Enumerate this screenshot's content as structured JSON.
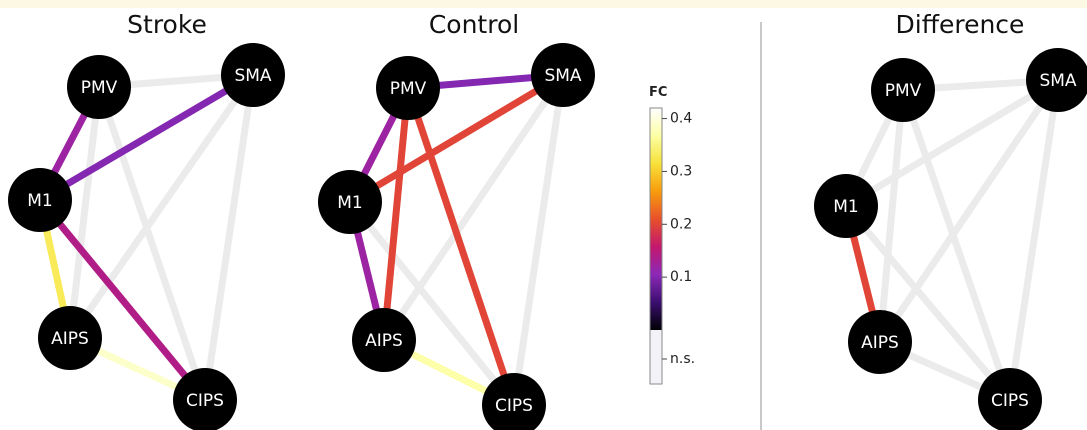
{
  "panels": [
    {
      "id": "stroke",
      "title": "Stroke",
      "edges": [
        {
          "from": "PMV",
          "to": "SMA",
          "fc": "n.s."
        },
        {
          "from": "PMV",
          "to": "M1",
          "fc": 0.12
        },
        {
          "from": "SMA",
          "to": "M1",
          "fc": 0.1
        },
        {
          "from": "PMV",
          "to": "AIPS",
          "fc": "n.s."
        },
        {
          "from": "PMV",
          "to": "CIPS",
          "fc": "n.s."
        },
        {
          "from": "SMA",
          "to": "AIPS",
          "fc": "n.s."
        },
        {
          "from": "SMA",
          "to": "CIPS",
          "fc": "n.s."
        },
        {
          "from": "M1",
          "to": "AIPS",
          "fc": 0.33
        },
        {
          "from": "M1",
          "to": "CIPS",
          "fc": 0.14
        },
        {
          "from": "AIPS",
          "to": "CIPS",
          "fc": 0.39
        }
      ]
    },
    {
      "id": "control",
      "title": "Control",
      "edges": [
        {
          "from": "PMV",
          "to": "SMA",
          "fc": 0.1
        },
        {
          "from": "PMV",
          "to": "M1",
          "fc": 0.12
        },
        {
          "from": "SMA",
          "to": "M1",
          "fc": 0.2
        },
        {
          "from": "PMV",
          "to": "AIPS",
          "fc": 0.2
        },
        {
          "from": "PMV",
          "to": "CIPS",
          "fc": 0.2
        },
        {
          "from": "SMA",
          "to": "AIPS",
          "fc": "n.s."
        },
        {
          "from": "SMA",
          "to": "CIPS",
          "fc": "n.s."
        },
        {
          "from": "M1",
          "to": "AIPS",
          "fc": 0.12
        },
        {
          "from": "M1",
          "to": "CIPS",
          "fc": "n.s."
        },
        {
          "from": "AIPS",
          "to": "CIPS",
          "fc": 0.37
        }
      ]
    },
    {
      "id": "difference",
      "title": "Difference",
      "edges": [
        {
          "from": "PMV",
          "to": "SMA",
          "fc": "n.s."
        },
        {
          "from": "PMV",
          "to": "M1",
          "fc": "n.s."
        },
        {
          "from": "SMA",
          "to": "M1",
          "fc": "n.s."
        },
        {
          "from": "PMV",
          "to": "AIPS",
          "fc": "n.s."
        },
        {
          "from": "PMV",
          "to": "CIPS",
          "fc": "n.s."
        },
        {
          "from": "SMA",
          "to": "AIPS",
          "fc": "n.s."
        },
        {
          "from": "SMA",
          "to": "CIPS",
          "fc": "n.s."
        },
        {
          "from": "M1",
          "to": "AIPS",
          "fc": 0.2
        },
        {
          "from": "M1",
          "to": "CIPS",
          "fc": "n.s."
        },
        {
          "from": "AIPS",
          "to": "CIPS",
          "fc": "n.s."
        }
      ]
    }
  ],
  "node_labels": {
    "PMV": "PMV",
    "SMA": "SMA",
    "M1": "M1",
    "AIPS": "AIPS",
    "CIPS": "CIPS"
  },
  "colorbar": {
    "title": "FC",
    "ticks": [
      {
        "value": 0.4,
        "label": "0.4"
      },
      {
        "value": 0.3,
        "label": "0.3"
      },
      {
        "value": 0.2,
        "label": "0.2"
      },
      {
        "value": 0.1,
        "label": "0.1"
      }
    ],
    "ns_label": "n.s.",
    "ns_color": "#ebebeb",
    "stops": [
      "#000004",
      "#3b0f70",
      "#8c29b8",
      "#c4176e",
      "#e8502b",
      "#f89c0c",
      "#f7e13a",
      "#fcffa4",
      "#ffffff"
    ]
  }
}
